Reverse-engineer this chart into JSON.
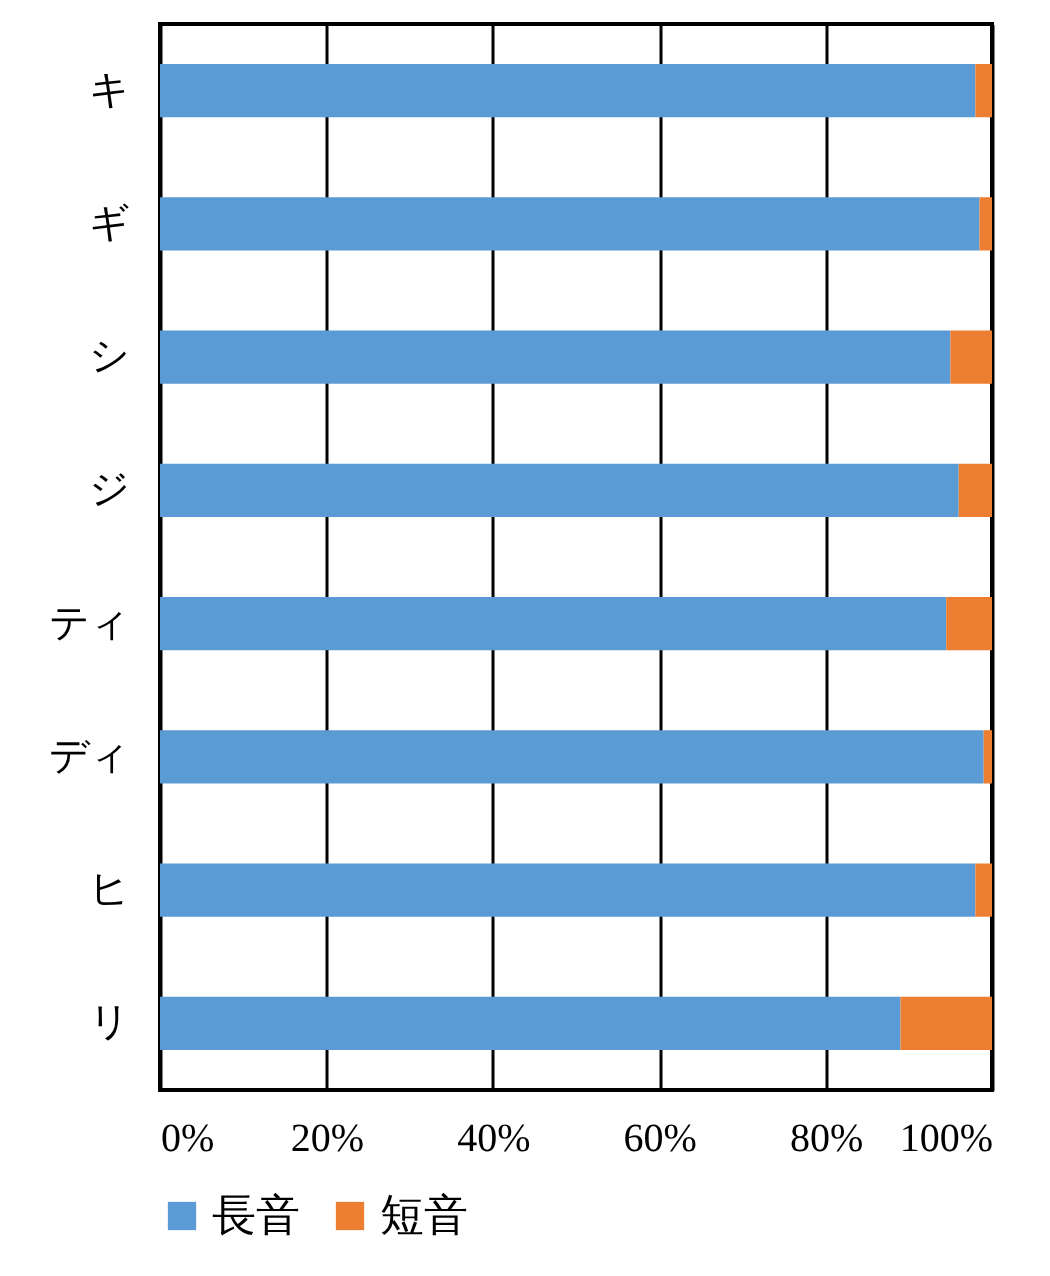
{
  "chart_data": {
    "type": "bar",
    "orientation": "horizontal",
    "stacked": true,
    "categories": [
      "キ",
      "ギ",
      "シ",
      "ジ",
      "ティ",
      "ディ",
      "ヒ",
      "リ"
    ],
    "series": [
      {
        "name": "長音",
        "color": "#5b9bd5",
        "values": [
          98,
          98.5,
          95,
          96,
          94.5,
          99,
          98,
          89
        ]
      },
      {
        "name": "短音",
        "color": "#ed7d31",
        "values": [
          2,
          1.5,
          5,
          4,
          5.5,
          1,
          2,
          11
        ]
      }
    ],
    "xlim": [
      0,
      100
    ],
    "xticks": [
      {
        "value": 0,
        "label": "0%"
      },
      {
        "value": 20,
        "label": "20%"
      },
      {
        "value": 40,
        "label": "40%"
      },
      {
        "value": 60,
        "label": "60%"
      },
      {
        "value": 80,
        "label": "80%"
      },
      {
        "value": 100,
        "label": "100%"
      }
    ],
    "grid": "x",
    "legend": "bottom"
  }
}
